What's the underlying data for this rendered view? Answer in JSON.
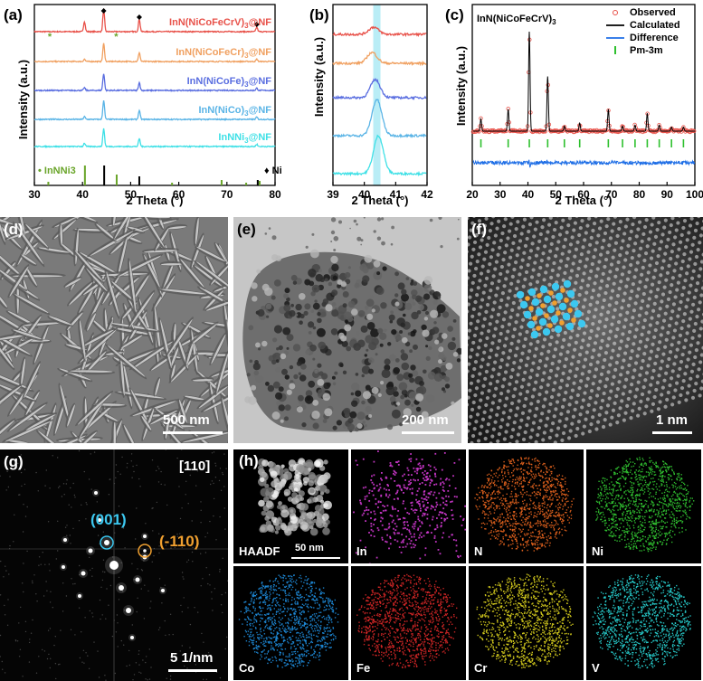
{
  "panel_a": {
    "label": "(a)",
    "chart_data": {
      "type": "line",
      "xlabel": "2 Theta (°)",
      "ylabel": "Intensity (a.u.)",
      "xlim": [
        30,
        80
      ],
      "xticks": [
        30,
        40,
        50,
        60,
        70,
        80
      ],
      "series": [
        {
          "name": "InN(NiCoFeCrV)3@NF",
          "color": "#e8524a"
        },
        {
          "name": "InN(NiCoFeCr)3@NF",
          "color": "#f0a060"
        },
        {
          "name": "InN(NiCoFe)3@NF",
          "color": "#5a6ee0"
        },
        {
          "name": "InN(NiCo)3@NF",
          "color": "#5ab4e6"
        },
        {
          "name": "InNNi3@NF",
          "color": "#3ee0e6"
        }
      ],
      "peaks": [
        40.4,
        44.4,
        51.8,
        76.2
      ],
      "reference_innni3": [
        32.9,
        40.5,
        47.1,
        58.6,
        68.9,
        74.0,
        76.8
      ],
      "reference_ni": [
        44.5,
        51.8,
        76.4
      ],
      "ref_innni3_label": "InNNi3",
      "ref_ni_label": "Ni",
      "ni_marker_color": "#000000",
      "innni3_marker_color": "#6aa52a"
    },
    "labels": {
      "s0": "InN(NiCoFeCrV)",
      "s1": "InN(NiCoFeCr)",
      "s2": "InN(NiCoFe)",
      "s3": "InN(NiCo)",
      "s4": "InNNi",
      "sub": "3",
      "suffix": "@NF"
    }
  },
  "panel_b": {
    "label": "(b)",
    "chart_data": {
      "type": "line",
      "xlabel": "2 Theta (°)",
      "ylabel": "Intensity (a.u.)",
      "xlim": [
        39,
        42
      ],
      "xticks": [
        39,
        40,
        41,
        42
      ],
      "highlight_x": 40.4,
      "peak_centers": [
        40.3,
        40.25,
        40.35,
        40.4,
        40.45
      ]
    }
  },
  "panel_c": {
    "label": "(c)",
    "title": "InN(NiCoFeCrV)",
    "title_sub": "3",
    "chart_data": {
      "type": "line",
      "xlabel": "2 Theta (°)",
      "ylabel": "Intensity (a.u.)",
      "xlim": [
        20,
        100
      ],
      "xticks": [
        20,
        30,
        40,
        50,
        60,
        70,
        80,
        90,
        100
      ],
      "legend": [
        {
          "name": "Observed",
          "color": "#e8524a"
        },
        {
          "name": "Calculated",
          "color": "#000000"
        },
        {
          "name": "Difference",
          "color": "#1e6ee6"
        },
        {
          "name": "Pm-3m",
          "color": "#2ec02e"
        }
      ],
      "peaks": [
        {
          "x": 23.1,
          "h": 0.12
        },
        {
          "x": 32.9,
          "h": 0.22
        },
        {
          "x": 40.5,
          "h": 1.0
        },
        {
          "x": 47.1,
          "h": 0.55
        },
        {
          "x": 53.1,
          "h": 0.05
        },
        {
          "x": 58.6,
          "h": 0.08
        },
        {
          "x": 68.9,
          "h": 0.22
        },
        {
          "x": 74.0,
          "h": 0.05
        },
        {
          "x": 78.5,
          "h": 0.06
        },
        {
          "x": 82.9,
          "h": 0.18
        },
        {
          "x": 87.2,
          "h": 0.06
        },
        {
          "x": 91.6,
          "h": 0.04
        },
        {
          "x": 95.9,
          "h": 0.04
        }
      ],
      "bragg": [
        23.1,
        32.9,
        40.5,
        47.1,
        53.1,
        58.6,
        68.9,
        74.0,
        78.5,
        82.9,
        87.2,
        91.6,
        95.9
      ]
    }
  },
  "panel_d": {
    "label": "(d)",
    "scale": "500 nm"
  },
  "panel_e": {
    "label": "(e)",
    "scale": "200 nm"
  },
  "panel_f": {
    "label": "(f)",
    "scale": "1 nm"
  },
  "panel_g": {
    "label": "(g)",
    "zone": "[110]",
    "spot1": "(001)",
    "spot2": "(-110)",
    "scale": "5 1/nm",
    "spot1_color": "#3cc8f0",
    "spot2_color": "#f0a030"
  },
  "panel_h": {
    "label": "(h)",
    "scale": "50 nm",
    "maps": [
      {
        "name": "HAADF",
        "color": "#ffffff"
      },
      {
        "name": "In",
        "color": "#d23ad2"
      },
      {
        "name": "N",
        "color": "#e6641e"
      },
      {
        "name": "Ni",
        "color": "#32c832"
      },
      {
        "name": "Co",
        "color": "#1e8cdc"
      },
      {
        "name": "Fe",
        "color": "#dc2828"
      },
      {
        "name": "Cr",
        "color": "#dcd21e"
      },
      {
        "name": "V",
        "color": "#28d2d2"
      }
    ]
  }
}
